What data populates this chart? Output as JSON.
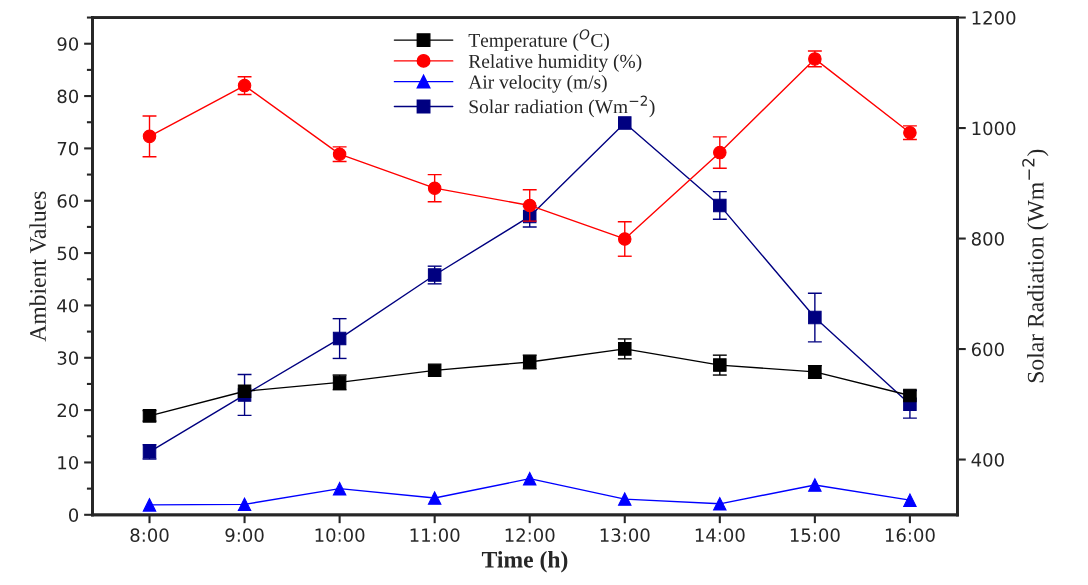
{
  "chart_data": {
    "type": "line",
    "xlabel": "Time (h)",
    "ylabel": "Ambient Values",
    "y2label": "Solar Radiation (Wm$^{−2}$)",
    "categories": [
      "8:00",
      "9:00",
      "10:00",
      "11:00",
      "12:00",
      "13:00",
      "14:00",
      "15:00",
      "16:00"
    ],
    "ylim": [
      0,
      95
    ],
    "yticks": [
      0,
      10,
      20,
      30,
      40,
      50,
      60,
      70,
      80,
      90
    ],
    "y2lim": [
      300,
      1200
    ],
    "y2ticks": [
      400,
      600,
      800,
      1000,
      1200
    ],
    "grid": false,
    "legend": "top",
    "series": [
      {
        "name": "Temperature ($^{O}$C)",
        "color": "#000000",
        "marker": "square",
        "values": [
          18.9,
          23.6,
          25.3,
          27.6,
          29.2,
          31.7,
          28.6,
          27.3,
          22.8
        ],
        "errors": [
          1.0,
          null,
          1.4,
          null,
          1.3,
          1.9,
          1.9,
          1.2,
          null
        ]
      },
      {
        "name": "Relative humidity (%)",
        "color": "#ff0000",
        "marker": "circle",
        "values": [
          72.3,
          82.0,
          68.9,
          62.4,
          59.1,
          52.7,
          69.2,
          87.1,
          73.0
        ],
        "errors": [
          3.9,
          1.7,
          1.4,
          2.6,
          3.0,
          3.3,
          3.0,
          1.5,
          1.3
        ]
      },
      {
        "name": "Air velocity (m/s)",
        "color": "#0000ff",
        "marker": "triangle",
        "values": [
          1.9,
          2.0,
          5.0,
          3.2,
          6.9,
          3.0,
          2.1,
          5.7,
          2.8
        ]
      },
      {
        "name": "Solar radiation (Wm$^{−2}$)",
        "color": "#000080",
        "marker": "square",
        "axis": "y2",
        "values": [
          414,
          517,
          619,
          734,
          840,
          1009,
          860,
          657,
          500
        ],
        "errors": [
          13,
          37,
          36,
          16,
          19,
          null,
          25,
          44,
          25
        ]
      }
    ]
  }
}
